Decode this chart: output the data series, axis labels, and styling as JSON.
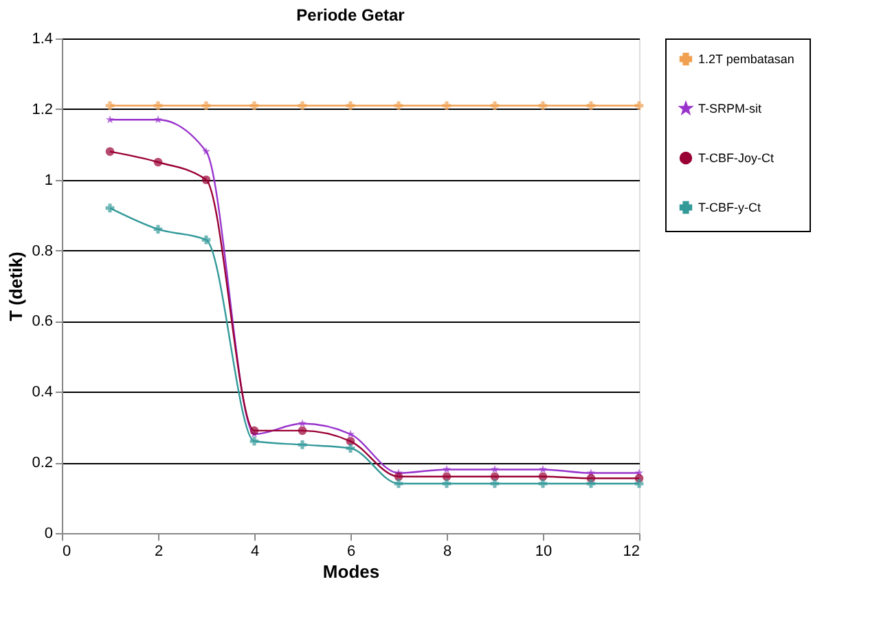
{
  "chart_data": {
    "type": "line",
    "title": "Periode Getar",
    "xlabel": "Modes",
    "ylabel": "T (detik)",
    "x": [
      1,
      2,
      3,
      4,
      5,
      6,
      7,
      8,
      9,
      10,
      11,
      12
    ],
    "series": [
      {
        "name": "1.2T pembatasan",
        "color": "#f0a050",
        "marker": "cross",
        "values": [
          1.21,
          1.21,
          1.21,
          1.21,
          1.21,
          1.21,
          1.21,
          1.21,
          1.21,
          1.21,
          1.21,
          1.21
        ]
      },
      {
        "name": "T-SRPM-sit",
        "color": "#9933cc",
        "marker": "star",
        "values": [
          1.17,
          1.17,
          1.08,
          0.28,
          0.31,
          0.28,
          0.17,
          0.18,
          0.18,
          0.18,
          0.17,
          0.17
        ]
      },
      {
        "name": "T-CBF-Joy-Ct",
        "color": "#990033",
        "marker": "circle",
        "values": [
          1.08,
          1.05,
          1.0,
          0.29,
          0.29,
          0.26,
          0.16,
          0.16,
          0.16,
          0.16,
          0.155,
          0.155
        ]
      },
      {
        "name": "T-CBF-y-Ct",
        "color": "#339999",
        "marker": "cross",
        "values": [
          0.92,
          0.86,
          0.83,
          0.26,
          0.25,
          0.24,
          0.14,
          0.14,
          0.14,
          0.14,
          0.14,
          0.14
        ]
      }
    ],
    "xlim": [
      0,
      12
    ],
    "xticks": [
      0,
      2,
      4,
      6,
      8,
      10,
      12
    ],
    "ylim": [
      0,
      1.4
    ],
    "yticks": [
      0,
      0.2,
      0.4,
      0.6,
      0.8,
      1,
      1.2,
      1.4
    ],
    "grid": "y",
    "legend": "right",
    "line_style": "solid"
  }
}
